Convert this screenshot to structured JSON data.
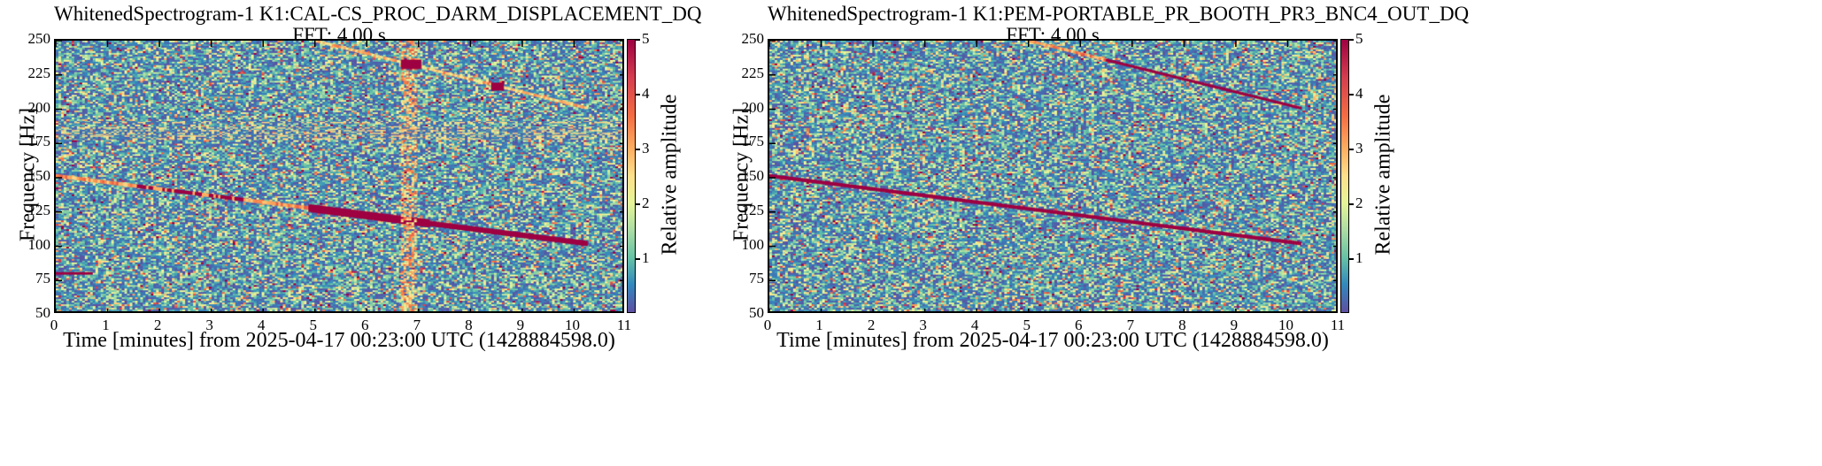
{
  "chart_data": [
    {
      "type": "heatmap",
      "title": "WhitenedSpectrogram-1 K1:CAL-CS_PROC_DARM_DISPLACEMENT_DQ",
      "subtitle": "FFT: 4.00 s",
      "xlabel": "Time [minutes] from 2025-04-17 00:23:00 UTC (1428884598.0)",
      "ylabel": "Frequency [Hz]",
      "xlim": [
        0,
        11
      ],
      "ylim": [
        50,
        250
      ],
      "xticks": [
        "0",
        "1",
        "2",
        "3",
        "4",
        "5",
        "6",
        "7",
        "8",
        "9",
        "10",
        "11"
      ],
      "yticks": [
        "50",
        "75",
        "100",
        "125",
        "150",
        "175",
        "200",
        "225",
        "250"
      ],
      "colorbar": {
        "label": "Relative amplitude",
        "range": [
          0,
          5
        ],
        "ticks": [
          "1",
          "2",
          "3",
          "4",
          "5"
        ]
      },
      "features": [
        {
          "kind": "chirp",
          "t": [
            0,
            10.3
          ],
          "f": [
            150,
            100
          ],
          "strength": "strong-right"
        },
        {
          "kind": "chirp",
          "t": [
            5.0,
            10.3
          ],
          "f": [
            250,
            200
          ],
          "strength": "faint"
        },
        {
          "kind": "tone",
          "t": [
            0,
            0.7
          ],
          "f": [
            78,
            78
          ]
        },
        {
          "kind": "glitch",
          "t": [
            6.7,
            7.0
          ],
          "f": [
            50,
            250
          ]
        },
        {
          "kind": "hot-spot",
          "t": [
            6.7,
            7.1
          ],
          "f": [
            229,
            236
          ]
        },
        {
          "kind": "hot-spot",
          "t": [
            8.45,
            8.7
          ],
          "f": [
            213,
            219
          ]
        },
        {
          "kind": "lines",
          "f": [
            178,
            180,
            182,
            184,
            186,
            190
          ]
        }
      ]
    },
    {
      "type": "heatmap",
      "title": "WhitenedSpectrogram-1 K1:PEM-PORTABLE_PR_BOOTH_PR3_BNC4_OUT_DQ",
      "subtitle": "FFT: 4.00 s",
      "xlabel": "Time [minutes] from 2025-04-17 00:23:00 UTC (1428884598.0)",
      "ylabel": "Frequency [Hz]",
      "xlim": [
        0,
        11
      ],
      "ylim": [
        50,
        250
      ],
      "xticks": [
        "0",
        "1",
        "2",
        "3",
        "4",
        "5",
        "6",
        "7",
        "8",
        "9",
        "10",
        "11"
      ],
      "yticks": [
        "50",
        "75",
        "100",
        "125",
        "150",
        "175",
        "200",
        "225",
        "250"
      ],
      "colorbar": {
        "label": "Relative amplitude",
        "range": [
          0,
          5
        ],
        "ticks": [
          "1",
          "2",
          "3",
          "4",
          "5"
        ]
      },
      "features": [
        {
          "kind": "chirp",
          "t": [
            0,
            10.3
          ],
          "f": [
            150,
            100
          ],
          "strength": "strong"
        },
        {
          "kind": "chirp",
          "t": [
            5.0,
            10.3
          ],
          "f": [
            250,
            200
          ],
          "strength": "medium"
        }
      ]
    }
  ]
}
